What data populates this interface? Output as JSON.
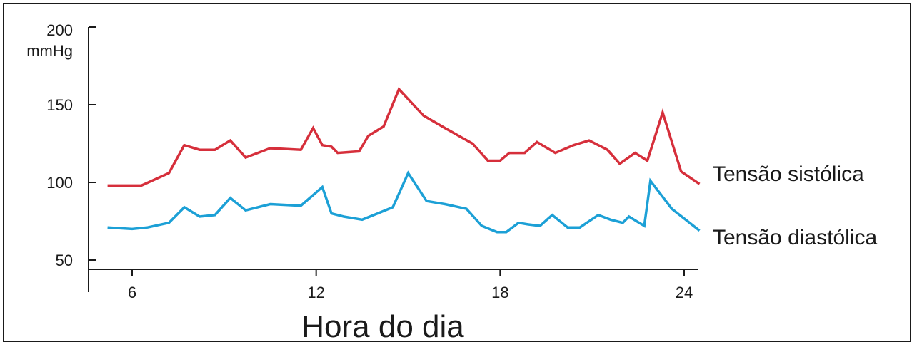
{
  "chart_data": {
    "type": "line",
    "xlabel": "Hora do dia",
    "ylabel_top": "200",
    "y_unit": "mmHg",
    "xlim": [
      5.4,
      24.5
    ],
    "ylim": [
      45,
      200
    ],
    "xticks": [
      6,
      12,
      18,
      24
    ],
    "yticks": [
      50,
      100,
      150
    ],
    "grid": false,
    "series": [
      {
        "name": "Tensão sistólica",
        "color": "#d62f3b",
        "x": [
          5.2,
          6.3,
          7.2,
          7.7,
          8.2,
          8.7,
          9.2,
          9.7,
          10.5,
          11.5,
          11.9,
          12.2,
          12.5,
          12.7,
          13.4,
          13.7,
          14.2,
          14.7,
          15.5,
          16.2,
          17.1,
          17.6,
          18.0,
          18.3,
          18.8,
          19.2,
          19.8,
          20.4,
          20.9,
          21.5,
          21.9,
          22.4,
          22.8,
          23.3,
          23.9,
          24.5
        ],
        "y": [
          98,
          98,
          106,
          124,
          121,
          121,
          127,
          116,
          122,
          121,
          135,
          124,
          123,
          119,
          120,
          130,
          136,
          160,
          143,
          135,
          125,
          114,
          114,
          119,
          119,
          126,
          119,
          124,
          127,
          121,
          112,
          119,
          114,
          145,
          107,
          99
        ]
      },
      {
        "name": "Tensão diastólica",
        "color": "#1ca0d6",
        "x": [
          5.2,
          6.0,
          6.5,
          7.2,
          7.7,
          8.2,
          8.7,
          9.2,
          9.7,
          10.5,
          11.5,
          12.2,
          12.5,
          12.9,
          13.5,
          14.0,
          14.5,
          15.0,
          15.6,
          16.2,
          16.9,
          17.4,
          17.9,
          18.2,
          18.6,
          18.9,
          19.3,
          19.7,
          20.2,
          20.6,
          21.2,
          21.6,
          22.0,
          22.2,
          22.7,
          22.9,
          23.6,
          24.5
        ],
        "y": [
          71,
          70,
          71,
          74,
          84,
          78,
          79,
          90,
          82,
          86,
          85,
          97,
          80,
          78,
          76,
          80,
          84,
          106,
          88,
          86,
          83,
          72,
          68,
          68,
          74,
          73,
          72,
          79,
          71,
          71,
          79,
          76,
          74,
          78,
          72,
          101,
          83,
          69
        ]
      }
    ]
  }
}
